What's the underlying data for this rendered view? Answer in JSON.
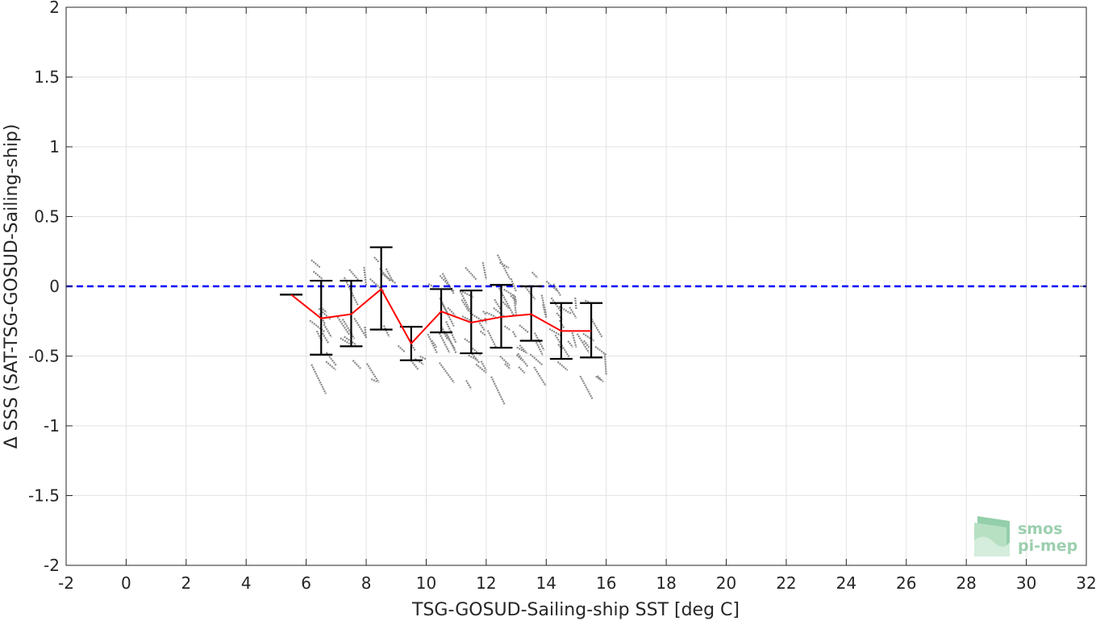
{
  "chart_data": {
    "type": "scatter",
    "xlabel": "TSG-GOSUD-Sailing-ship SST [deg C]",
    "ylabel": "Δ SSS (SAT-TSG-GOSUD-Sailing-ship)",
    "xlim": [
      -2,
      32
    ],
    "ylim": [
      -2,
      2
    ],
    "xticks": [
      -2,
      0,
      2,
      4,
      6,
      8,
      10,
      12,
      14,
      16,
      18,
      20,
      22,
      24,
      26,
      28,
      30,
      32
    ],
    "yticks": [
      -2,
      -1.5,
      -1,
      -0.5,
      0,
      0.5,
      1,
      1.5,
      2
    ],
    "grid": true,
    "reference_line": {
      "y": 0,
      "style": "dashed",
      "color": "#0000ff"
    },
    "scatter_color": "#888888",
    "mean_line_color": "#ff0000",
    "errorbar_color": "#000000",
    "series": [
      {
        "type": "errorbar",
        "x": [
          5.5,
          6.5,
          7.5,
          8.5,
          9.5,
          10.5,
          11.5,
          12.5,
          13.5,
          14.5,
          15.5
        ],
        "y": [
          -0.06,
          -0.23,
          -0.2,
          -0.02,
          -0.41,
          -0.18,
          -0.26,
          -0.22,
          -0.2,
          -0.32,
          -0.32
        ],
        "lower": [
          -0.06,
          -0.49,
          -0.43,
          -0.31,
          -0.53,
          -0.33,
          -0.48,
          -0.44,
          -0.39,
          -0.52,
          -0.51
        ],
        "upper": [
          -0.06,
          0.04,
          0.04,
          0.28,
          -0.29,
          -0.02,
          -0.03,
          0.01,
          0.0,
          -0.12,
          -0.12
        ]
      }
    ],
    "scatter_clusters": [
      {
        "xmin": 6.0,
        "xmax": 7.0,
        "ymin": -0.6,
        "ymax": 0.2,
        "n": 12
      },
      {
        "xmin": 7.0,
        "xmax": 8.0,
        "ymin": -0.55,
        "ymax": 0.25,
        "n": 10
      },
      {
        "xmin": 8.0,
        "xmax": 9.0,
        "ymin": -0.7,
        "ymax": 0.25,
        "n": 8
      },
      {
        "xmin": 9.0,
        "xmax": 10.0,
        "ymin": -0.55,
        "ymax": -0.2,
        "n": 5
      },
      {
        "xmin": 10.0,
        "xmax": 11.0,
        "ymin": -0.6,
        "ymax": 0.1,
        "n": 14
      },
      {
        "xmin": 11.0,
        "xmax": 12.0,
        "ymin": -0.7,
        "ymax": 0.22,
        "n": 18
      },
      {
        "xmin": 12.0,
        "xmax": 13.0,
        "ymin": -0.65,
        "ymax": 0.3,
        "n": 18
      },
      {
        "xmin": 13.0,
        "xmax": 14.0,
        "ymin": -0.7,
        "ymax": 0.15,
        "n": 14
      },
      {
        "xmin": 14.0,
        "xmax": 15.0,
        "ymin": -0.6,
        "ymax": 0.05,
        "n": 14
      },
      {
        "xmin": 15.0,
        "xmax": 16.0,
        "ymin": -0.65,
        "ymax": -0.1,
        "n": 10
      }
    ]
  },
  "logo": {
    "line1": "smos",
    "line2": "pi-mep"
  }
}
